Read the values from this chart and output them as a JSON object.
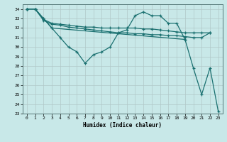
{
  "xlabel": "Humidex (Indice chaleur)",
  "background_color": "#c8e8e8",
  "grid_color": "#b0c8c8",
  "line_color": "#1a7070",
  "xlim": [
    -0.5,
    23.5
  ],
  "ylim": [
    23,
    34.5
  ],
  "yticks": [
    23,
    24,
    25,
    26,
    27,
    28,
    29,
    30,
    31,
    32,
    33,
    34
  ],
  "xticks": [
    0,
    1,
    2,
    3,
    4,
    5,
    6,
    7,
    8,
    9,
    10,
    11,
    12,
    13,
    14,
    15,
    16,
    17,
    18,
    19,
    20,
    21,
    22,
    23
  ],
  "series": [
    {
      "x": [
        0,
        1,
        2,
        3,
        4,
        5,
        6,
        7,
        8,
        9,
        10,
        11,
        12,
        13,
        14,
        15,
        16,
        17,
        18,
        19
      ],
      "y": [
        34,
        34,
        33,
        32,
        31,
        30,
        29.5,
        28.3,
        29.2,
        29.5,
        30.0,
        31.5,
        31.8,
        33.3,
        33.7,
        33.3,
        33.3,
        32.5,
        32.5,
        30.8
      ]
    },
    {
      "x": [
        0,
        1,
        2,
        3,
        4,
        5,
        6,
        7,
        8,
        9,
        10,
        11,
        12,
        13,
        14,
        15,
        16,
        17,
        18,
        19,
        20,
        21,
        22
      ],
      "y": [
        34,
        34,
        32.9,
        32.5,
        32.4,
        32.3,
        32.2,
        32.1,
        32.1,
        32.0,
        32.0,
        32.0,
        32.0,
        32.0,
        31.9,
        31.9,
        31.8,
        31.7,
        31.6,
        31.5,
        31.5,
        31.5,
        31.5
      ]
    },
    {
      "x": [
        0,
        1,
        2,
        3,
        4,
        5,
        6,
        7,
        8,
        9,
        10,
        11,
        12,
        13,
        14,
        15,
        16,
        17,
        18,
        19,
        20,
        21,
        22
      ],
      "y": [
        34,
        34,
        32.8,
        32.4,
        32.3,
        32.1,
        32.0,
        31.9,
        31.8,
        31.7,
        31.6,
        31.5,
        31.5,
        31.4,
        31.4,
        31.3,
        31.3,
        31.2,
        31.2,
        31.1,
        31.0,
        31.0,
        31.5
      ]
    },
    {
      "x": [
        0,
        1,
        2,
        3,
        19,
        20,
        21,
        22,
        23
      ],
      "y": [
        34,
        34,
        33,
        32,
        30.8,
        27.8,
        25.0,
        27.8,
        23.2
      ]
    }
  ]
}
